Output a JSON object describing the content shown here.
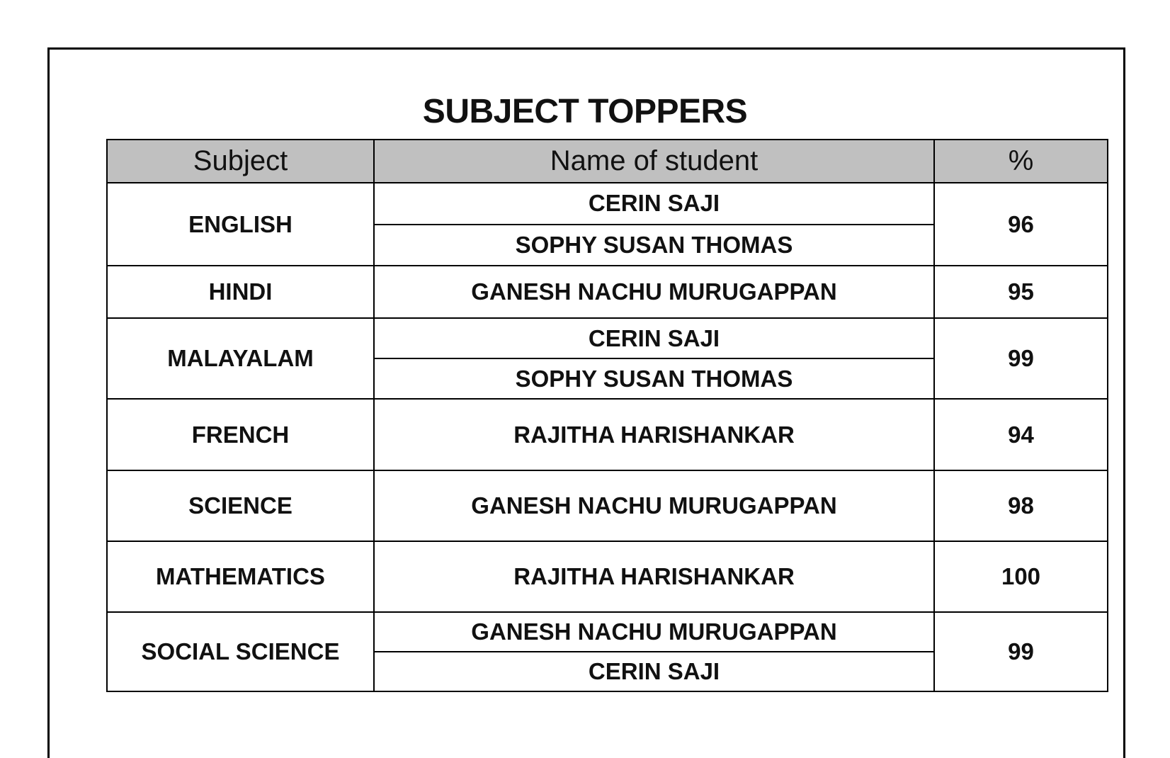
{
  "title": "SUBJECT TOPPERS",
  "headers": {
    "subject": "Subject",
    "name": "Name of student",
    "percent": "%"
  },
  "rows": [
    {
      "subject": "ENGLISH",
      "names": [
        "CERIN SAJI",
        "SOPHY SUSAN THOMAS"
      ],
      "percent": "96"
    },
    {
      "subject": "HINDI",
      "names": [
        "GANESH NACHU MURUGAPPAN"
      ],
      "percent": "95"
    },
    {
      "subject": "MALAYALAM",
      "names": [
        "CERIN SAJI",
        "SOPHY SUSAN THOMAS"
      ],
      "percent": "99"
    },
    {
      "subject": "FRENCH",
      "names": [
        "RAJITHA HARISHANKAR"
      ],
      "percent": "94"
    },
    {
      "subject": "SCIENCE",
      "names": [
        "GANESH NACHU MURUGAPPAN"
      ],
      "percent": "98"
    },
    {
      "subject": "MATHEMATICS",
      "names": [
        "RAJITHA HARISHANKAR"
      ],
      "percent": "100"
    },
    {
      "subject": "SOCIAL SCIENCE",
      "names": [
        "GANESH NACHU MURUGAPPAN",
        "CERIN SAJI"
      ],
      "percent": "99"
    }
  ],
  "colors": {
    "header_bg": "#c0c0c0",
    "border": "#000000"
  }
}
